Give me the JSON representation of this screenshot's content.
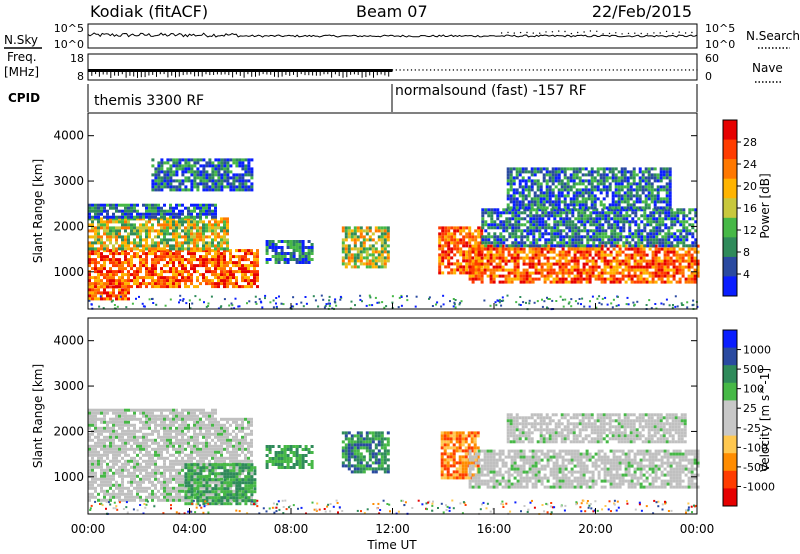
{
  "header": {
    "title": "Kodiak (fitACF)",
    "beam": "Beam 07",
    "date": "22/Feb/2015"
  },
  "status_panel": {
    "nsky_label": "N.Sky",
    "nsearch_label": "N.Search",
    "left_ticks": [
      "10^5",
      "10^0"
    ],
    "right_ticks": [
      "10^5",
      "10^0"
    ]
  },
  "freq_panel": {
    "freq_label_line1": "Freq.",
    "freq_label_line2": "[MHz]",
    "nave_label": "Nave",
    "left_ticks": [
      "18",
      "8"
    ],
    "right_ticks": [
      "60",
      "0"
    ]
  },
  "cpid": {
    "label": "CPID",
    "segments": [
      {
        "start_hour": 0,
        "end_hour": 12,
        "text": "themis 3300 RF"
      },
      {
        "start_hour": 12,
        "end_hour": 24,
        "text": "normalsound (fast) -157 RF"
      }
    ]
  },
  "colors": {
    "power_scale": [
      "#0a1eff",
      "#2a4aa0",
      "#2f8a5a",
      "#46b846",
      "#c8c83c",
      "#ffb400",
      "#ff7800",
      "#ff3c00",
      "#e60000"
    ],
    "velocity_scale": [
      "#e60000",
      "#ff3c00",
      "#ff8c00",
      "#ffc850",
      "#c8c8c8",
      "#c8c8c8",
      "#46b846",
      "#2f8a5a",
      "#2a4aa0",
      "#0a1eff"
    ],
    "ground_scatter": "#c0c0c0"
  },
  "chart_data": [
    {
      "type": "heatmap",
      "panel": "power",
      "ylabel": "Slant Range [km]",
      "colorbar_label": "Power [dB]",
      "colorbar_ticks": [
        "4",
        "8",
        "12",
        "16",
        "20",
        "24",
        "28"
      ],
      "ylim": [
        180,
        4500
      ],
      "xlim": [
        0,
        24
      ],
      "yticks": [
        "1000",
        "2000",
        "3000",
        "4000"
      ],
      "regions": [
        {
          "t0": 0.0,
          "t1": 6.7,
          "r0": 700,
          "r1": 1500,
          "level": "high"
        },
        {
          "t0": 0.0,
          "t1": 5.5,
          "r0": 1500,
          "r1": 2200,
          "level": "mid"
        },
        {
          "t0": 0.0,
          "t1": 1.6,
          "r0": 400,
          "r1": 700,
          "level": "high"
        },
        {
          "t0": 0.0,
          "t1": 5.0,
          "r0": 2200,
          "r1": 2500,
          "level": "low"
        },
        {
          "t0": 2.5,
          "t1": 6.5,
          "r0": 2800,
          "r1": 3500,
          "level": "low"
        },
        {
          "t0": 7.0,
          "t1": 8.8,
          "r0": 1200,
          "r1": 1700,
          "level": "low"
        },
        {
          "t0": 10.0,
          "t1": 11.8,
          "r0": 1100,
          "r1": 2000,
          "level": "mid"
        },
        {
          "t0": 13.8,
          "t1": 15.5,
          "r0": 1000,
          "r1": 2000,
          "level": "high"
        },
        {
          "t0": 15.0,
          "t1": 24.0,
          "r0": 800,
          "r1": 1600,
          "level": "high"
        },
        {
          "t0": 15.5,
          "t1": 24.0,
          "r0": 1600,
          "r1": 2400,
          "level": "low"
        },
        {
          "t0": 16.5,
          "t1": 23.0,
          "r0": 2400,
          "r1": 3300,
          "level": "low"
        }
      ]
    },
    {
      "type": "heatmap",
      "panel": "velocity",
      "ylabel": "Slant Range [km]",
      "colorbar_label": "Velocity [m s^-1]",
      "colorbar_ticks": [
        "-1000",
        "-500",
        "-100",
        "-25",
        "25",
        "100",
        "500",
        "1000"
      ],
      "ylim": [
        180,
        4500
      ],
      "xlim": [
        0,
        24
      ],
      "yticks": [
        "1000",
        "2000",
        "3000",
        "4000"
      ],
      "xticks": [
        "00:00",
        "04:00",
        "08:00",
        "12:00",
        "16:00",
        "20:00",
        "00:00"
      ],
      "xlabel": "Time UT",
      "regions": [
        {
          "t0": 0.0,
          "t1": 6.5,
          "r0": 500,
          "r1": 2300,
          "kind": "ground"
        },
        {
          "t0": 0.0,
          "t1": 5.0,
          "r0": 2300,
          "r1": 2500,
          "kind": "ground"
        },
        {
          "t0": 3.8,
          "t1": 6.6,
          "r0": 400,
          "r1": 1300,
          "kind": "positive"
        },
        {
          "t0": 7.0,
          "t1": 8.8,
          "r0": 1200,
          "r1": 1700,
          "kind": "positive"
        },
        {
          "t0": 10.0,
          "t1": 11.8,
          "r0": 1100,
          "r1": 2000,
          "kind": "positive_strong"
        },
        {
          "t0": 13.9,
          "t1": 15.4,
          "r0": 1000,
          "r1": 2000,
          "kind": "negative"
        },
        {
          "t0": 15.0,
          "t1": 24.0,
          "r0": 800,
          "r1": 1600,
          "kind": "ground"
        },
        {
          "t0": 16.5,
          "t1": 23.5,
          "r0": 1800,
          "r1": 2400,
          "kind": "ground"
        }
      ]
    }
  ]
}
